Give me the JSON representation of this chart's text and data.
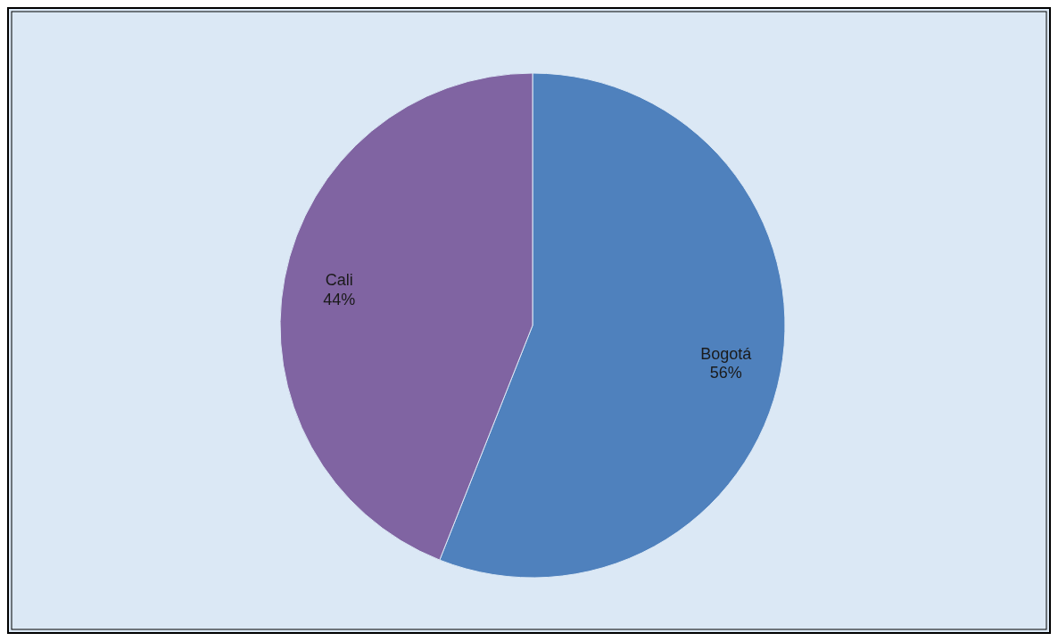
{
  "chart_data": {
    "type": "pie",
    "categories": [
      "Bogotá",
      "Cali"
    ],
    "values": [
      56,
      44
    ],
    "colors": [
      "#4f81bd",
      "#8064a2"
    ],
    "value_labels": [
      "56%",
      "44%"
    ]
  }
}
